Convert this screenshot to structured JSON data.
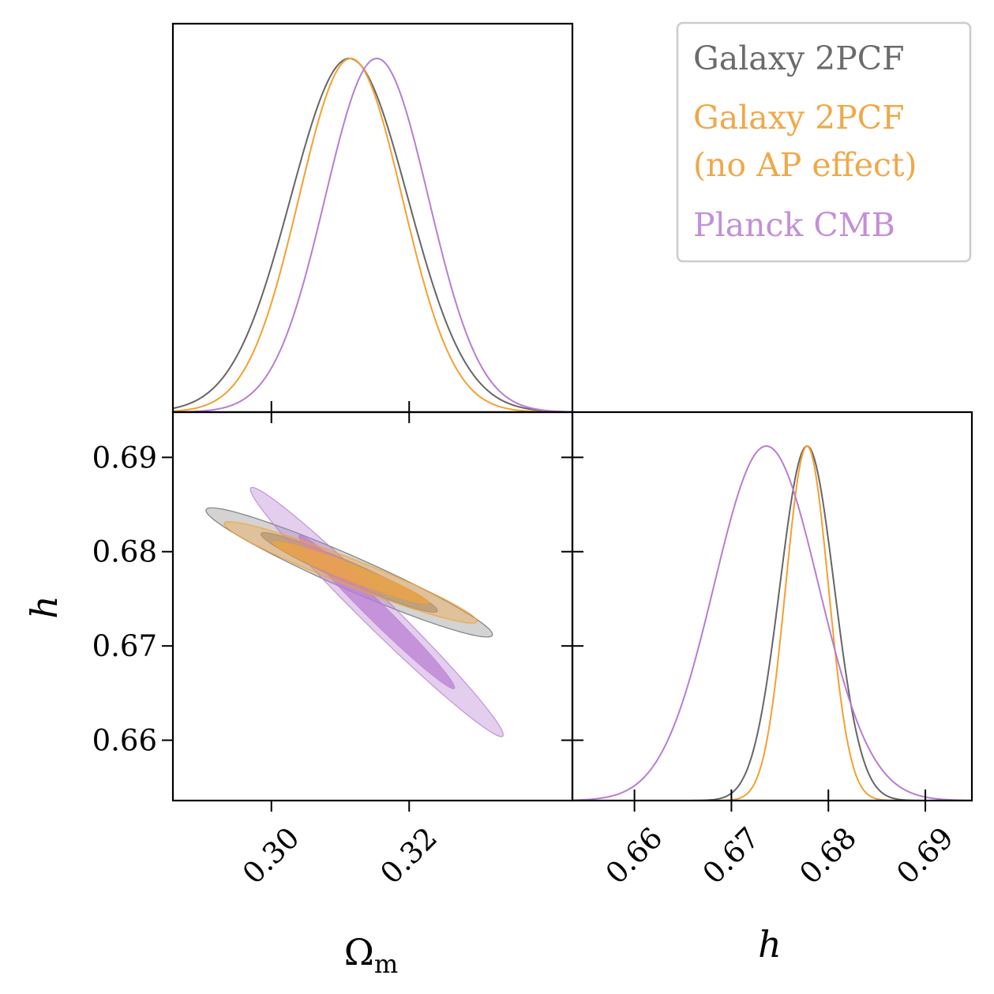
{
  "chart_data": {
    "type": "triangle",
    "parameters": [
      {
        "key": "Om",
        "label": "Ω",
        "label_sub": "m",
        "range": [
          0.2857,
          0.3437
        ],
        "ticks": [
          "0.30",
          "0.32"
        ],
        "tick_values": [
          0.3,
          0.32
        ]
      },
      {
        "key": "h",
        "label": "h",
        "label_sub": "",
        "range": [
          0.6536,
          0.6948
        ],
        "ticks": [
          "0.66",
          "0.67",
          "0.68",
          "0.69"
        ],
        "tick_values": [
          0.66,
          0.67,
          0.68,
          0.69
        ]
      }
    ],
    "series": [
      {
        "name": "Galaxy 2PCF",
        "color": "#666666",
        "fill": "#8c8c8c",
        "Om": {
          "mean": 0.3113,
          "sigma": 0.0085
        },
        "h": {
          "mean": 0.6778,
          "sigma": 0.0028
        },
        "corr": -0.96
      },
      {
        "name": "Galaxy 2PCF (no AP effect)",
        "color": "#f4a030",
        "fill": "#f1a340",
        "Om": {
          "mean": 0.3115,
          "sigma": 0.0075
        },
        "h": {
          "mean": 0.6778,
          "sigma": 0.0022
        },
        "corr": -0.96
      },
      {
        "name": "Planck CMB",
        "color": "#b77dd2",
        "fill": "#b77dd2",
        "Om": {
          "mean": 0.3153,
          "sigma": 0.0075
        },
        "h": {
          "mean": 0.6736,
          "sigma": 0.0054
        },
        "corr": -0.985
      }
    ],
    "legend": [
      {
        "lines": [
          "Galaxy 2PCF"
        ],
        "color": "#6b6b6b"
      },
      {
        "lines": [
          "Galaxy 2PCF",
          "(no AP effect)"
        ],
        "color": "#f0a848"
      },
      {
        "lines": [
          "Planck CMB"
        ],
        "color": "#c38fd8"
      }
    ],
    "legend_position": "top-right",
    "contour_levels": [
      "68%",
      "95%"
    ]
  },
  "colors": {
    "axes": "#000000",
    "legend_border": "#cccccc"
  }
}
